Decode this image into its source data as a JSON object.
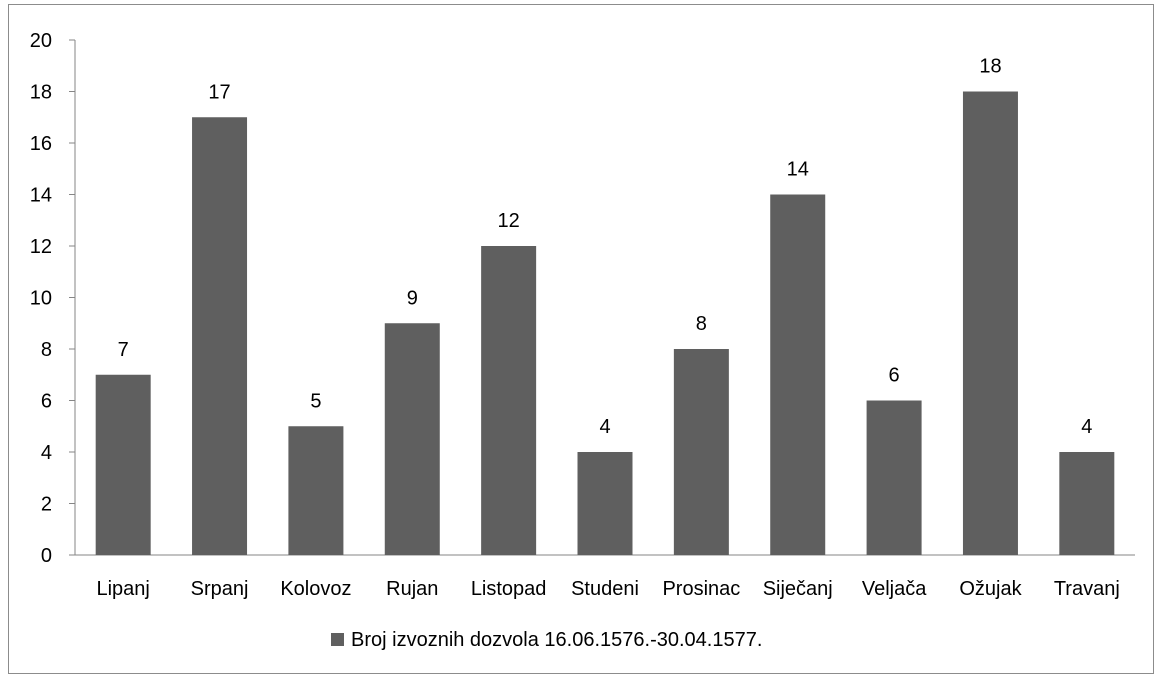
{
  "chart_data": {
    "type": "bar",
    "categories": [
      "Lipanj",
      "Srpanj",
      "Kolovoz",
      "Rujan",
      "Listopad",
      "Studeni",
      "Prosinac",
      "Siječanj",
      "Veljača",
      "Ožujak",
      "Travanj"
    ],
    "series": [
      {
        "name": "Broj izvoznih dozvola 16.06.1576.-30.04.1577.",
        "values": [
          7,
          17,
          5,
          9,
          12,
          4,
          8,
          14,
          6,
          18,
          4
        ],
        "color": "#5f5f5f"
      }
    ],
    "yticks": [
      0,
      2,
      4,
      6,
      8,
      10,
      12,
      14,
      16,
      18,
      20
    ],
    "ylim": [
      0,
      20
    ],
    "grid": false,
    "legend_position": "bottom",
    "data_labels": true
  }
}
